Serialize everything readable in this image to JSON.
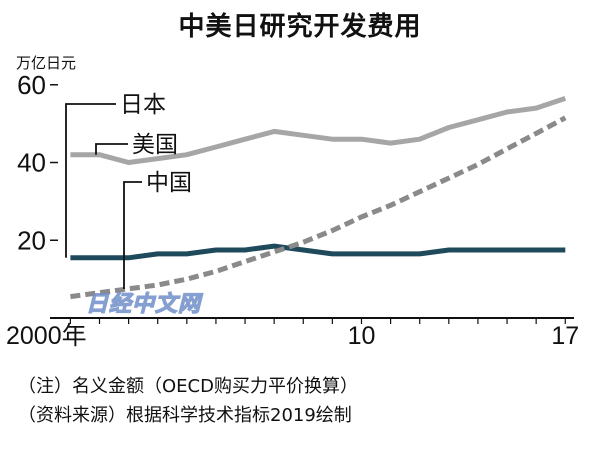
{
  "chart_data": {
    "type": "line",
    "title": "中美日研究开发费用",
    "unit": "万亿日元",
    "x": [
      2000,
      2001,
      2002,
      2003,
      2004,
      2005,
      2006,
      2007,
      2008,
      2009,
      2010,
      2011,
      2012,
      2013,
      2014,
      2015,
      2016,
      2017
    ],
    "xticks": [
      {
        "value": 2000,
        "label": "2000年"
      },
      {
        "value": 2010,
        "label": "10"
      },
      {
        "value": 2017,
        "label": "17"
      }
    ],
    "yticks": [
      {
        "value": 20,
        "label": "20"
      },
      {
        "value": 40,
        "label": "40"
      },
      {
        "value": 60,
        "label": "60"
      }
    ],
    "xlim": [
      1999.3,
      2017.3
    ],
    "ylim": [
      0,
      62
    ],
    "series": [
      {
        "name": "日本",
        "color": "#1e4a5c",
        "dash": "solid",
        "values": [
          15.5,
          15.5,
          15.5,
          16.5,
          16.5,
          17.5,
          17.5,
          18.5,
          17.5,
          16.5,
          16.5,
          16.5,
          16.5,
          17.5,
          17.5,
          17.5,
          17.5,
          17.5
        ]
      },
      {
        "name": "美国",
        "color": "#a6a6a6",
        "dash": "solid",
        "values": [
          42,
          42,
          40,
          41,
          42,
          44,
          46,
          48,
          47,
          46,
          46,
          45,
          46,
          49,
          51,
          53,
          54,
          56.5
        ]
      },
      {
        "name": "中国",
        "color": "#8a8a8a",
        "dash": "dashed",
        "values": [
          5.5,
          6.5,
          7.5,
          8.5,
          10,
          12,
          14.5,
          17,
          19.5,
          22.5,
          26,
          29,
          32.5,
          36,
          39.5,
          43.5,
          47.5,
          51.5
        ]
      }
    ],
    "grid": false
  },
  "notes": [
    "（注）名义金额（OECD购买力平价换算）",
    "（资料来源）根据科学技术指标2019绘制"
  ],
  "watermark": "日经中文网"
}
